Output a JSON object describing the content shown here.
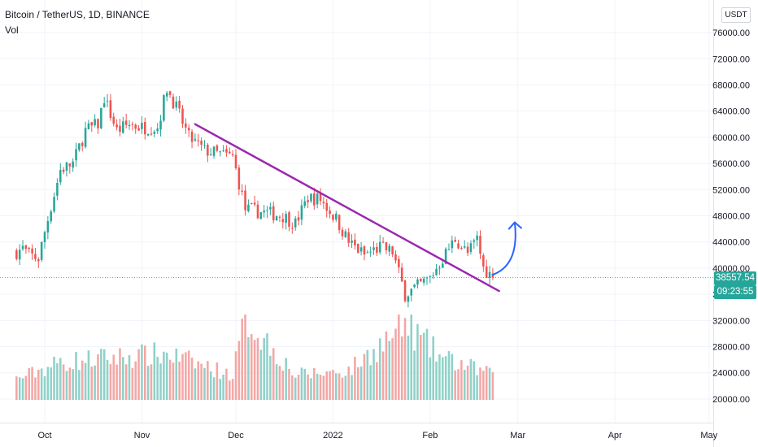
{
  "header": {
    "symbol": "Bitcoin / TetherUS, 1D, BINANCE",
    "indicator": "Vol"
  },
  "currency_button": "USDT",
  "price_badge": {
    "price": "38557.54",
    "countdown": "09:23:55"
  },
  "colors": {
    "up": "#26a69a",
    "down": "#ef5350",
    "vol_up": "#8fd1c8",
    "vol_down": "#f3a7a5",
    "trendline": "#9c27b0",
    "projection": "#2962ff",
    "price_badge": "#26a69a"
  },
  "chart_data": {
    "type": "candlestick",
    "title": "Bitcoin / TetherUS, 1D, BINANCE",
    "y_axis_ticks": [
      "76000.00",
      "72000.00",
      "68000.00",
      "64000.00",
      "60000.00",
      "56000.00",
      "52000.00",
      "48000.00",
      "44000.00",
      "40000.00",
      "36000.00",
      "32000.00",
      "28000.00",
      "24000.00",
      "20000.00"
    ],
    "x_axis_ticks": [
      "Oct",
      "Nov",
      "Dec",
      "2022",
      "Feb",
      "Mar",
      "Apr",
      "May"
    ],
    "ylim": [
      18500,
      77500
    ],
    "last_price": 38557.54,
    "price_path": [
      {
        "date": "2021-09-22",
        "price": 42500
      },
      {
        "date": "2021-09-24",
        "price": 43000
      },
      {
        "date": "2021-09-26",
        "price": 42000
      },
      {
        "date": "2021-09-29",
        "price": 41500
      },
      {
        "date": "2021-10-02",
        "price": 47500
      },
      {
        "date": "2021-10-06",
        "price": 55000
      },
      {
        "date": "2021-10-10",
        "price": 56000
      },
      {
        "date": "2021-10-14",
        "price": 61000
      },
      {
        "date": "2021-10-18",
        "price": 62000
      },
      {
        "date": "2021-10-20",
        "price": 66000
      },
      {
        "date": "2021-10-24",
        "price": 61000
      },
      {
        "date": "2021-10-28",
        "price": 62000
      },
      {
        "date": "2021-11-01",
        "price": 61500
      },
      {
        "date": "2021-11-06",
        "price": 61500
      },
      {
        "date": "2021-11-09",
        "price": 67500
      },
      {
        "date": "2021-11-12",
        "price": 64500
      },
      {
        "date": "2021-11-16",
        "price": 60000
      },
      {
        "date": "2021-11-21",
        "price": 58000
      },
      {
        "date": "2021-11-25",
        "price": 57500
      },
      {
        "date": "2021-11-30",
        "price": 57000
      },
      {
        "date": "2021-12-04",
        "price": 49000
      },
      {
        "date": "2021-12-10",
        "price": 48500
      },
      {
        "date": "2021-12-16",
        "price": 48000
      },
      {
        "date": "2021-12-20",
        "price": 46800
      },
      {
        "date": "2021-12-24",
        "price": 50800
      },
      {
        "date": "2021-12-28",
        "price": 50500
      },
      {
        "date": "2022-01-02",
        "price": 47500
      },
      {
        "date": "2022-01-06",
        "price": 44000
      },
      {
        "date": "2022-01-11",
        "price": 42000
      },
      {
        "date": "2022-01-16",
        "price": 43200
      },
      {
        "date": "2022-01-20",
        "price": 42500
      },
      {
        "date": "2022-01-24",
        "price": 36000
      },
      {
        "date": "2022-01-28",
        "price": 37200
      },
      {
        "date": "2022-02-01",
        "price": 38500
      },
      {
        "date": "2022-02-05",
        "price": 41500
      },
      {
        "date": "2022-02-09",
        "price": 44500
      },
      {
        "date": "2022-02-13",
        "price": 42200
      },
      {
        "date": "2022-02-16",
        "price": 44500
      },
      {
        "date": "2022-02-18",
        "price": 40000
      },
      {
        "date": "2022-02-21",
        "price": 38557.54
      }
    ],
    "volume_profile": [
      {
        "date": "2021-09-22",
        "level": 0.25
      },
      {
        "date": "2021-10-06",
        "level": 0.45
      },
      {
        "date": "2021-10-20",
        "level": 0.5
      },
      {
        "date": "2021-11-09",
        "level": 0.55
      },
      {
        "date": "2021-11-30",
        "level": 0.3
      },
      {
        "date": "2021-12-04",
        "level": 1.0
      },
      {
        "date": "2021-12-20",
        "level": 0.3
      },
      {
        "date": "2022-01-06",
        "level": 0.35
      },
      {
        "date": "2022-01-21",
        "level": 0.8
      },
      {
        "date": "2022-01-24",
        "level": 0.9
      },
      {
        "date": "2022-02-05",
        "level": 0.5
      },
      {
        "date": "2022-02-21",
        "level": 0.3
      }
    ],
    "trendline": {
      "from": {
        "date": "2021-11-18",
        "price": 62000
      },
      "to": {
        "date": "2022-02-23",
        "price": 36500
      }
    },
    "projection_arrow": {
      "from": {
        "date": "2022-02-21",
        "price": 39000
      },
      "to": {
        "date": "2022-02-28",
        "price": 47000
      }
    }
  }
}
